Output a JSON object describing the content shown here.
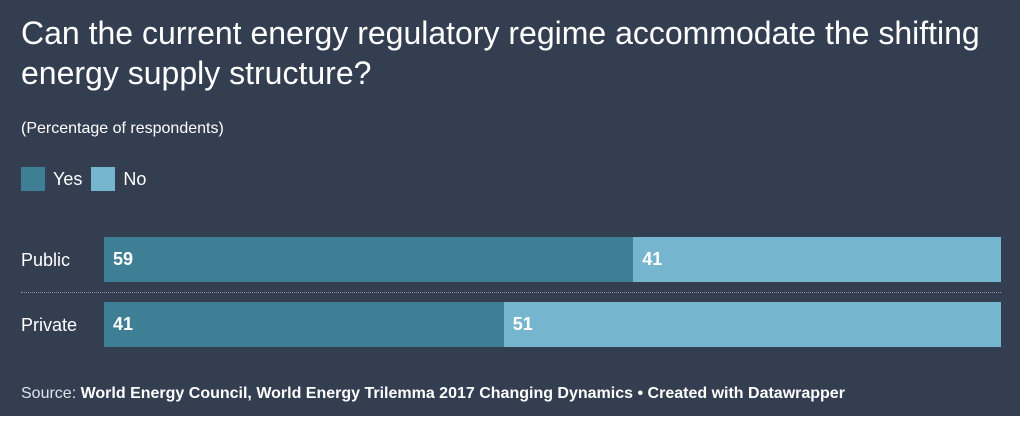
{
  "chart_data": {
    "type": "bar",
    "orientation": "horizontal",
    "stacked": true,
    "title": "Can the current energy regulatory regime accommodate the shifting energy supply structure?",
    "subtitle": "(Percentage of respondents)",
    "categories": [
      "Public",
      "Private"
    ],
    "series": [
      {
        "name": "Yes",
        "values": [
          59,
          41
        ],
        "color": "#3e7f96"
      },
      {
        "name": "No",
        "values": [
          41,
          51
        ],
        "color": "#75b5cd"
      }
    ],
    "xlim": [
      0,
      100
    ],
    "legend_position": "top-left",
    "grid": false
  },
  "source": {
    "label": "Source:",
    "text": "World Energy Council, World Energy Trilemma 2017 Changing Dynamics",
    "separator": "•",
    "credit": "Created with Datawrapper"
  },
  "colors": {
    "background": "#333e51",
    "yes": "#3e7f96",
    "no": "#75b5cd"
  }
}
